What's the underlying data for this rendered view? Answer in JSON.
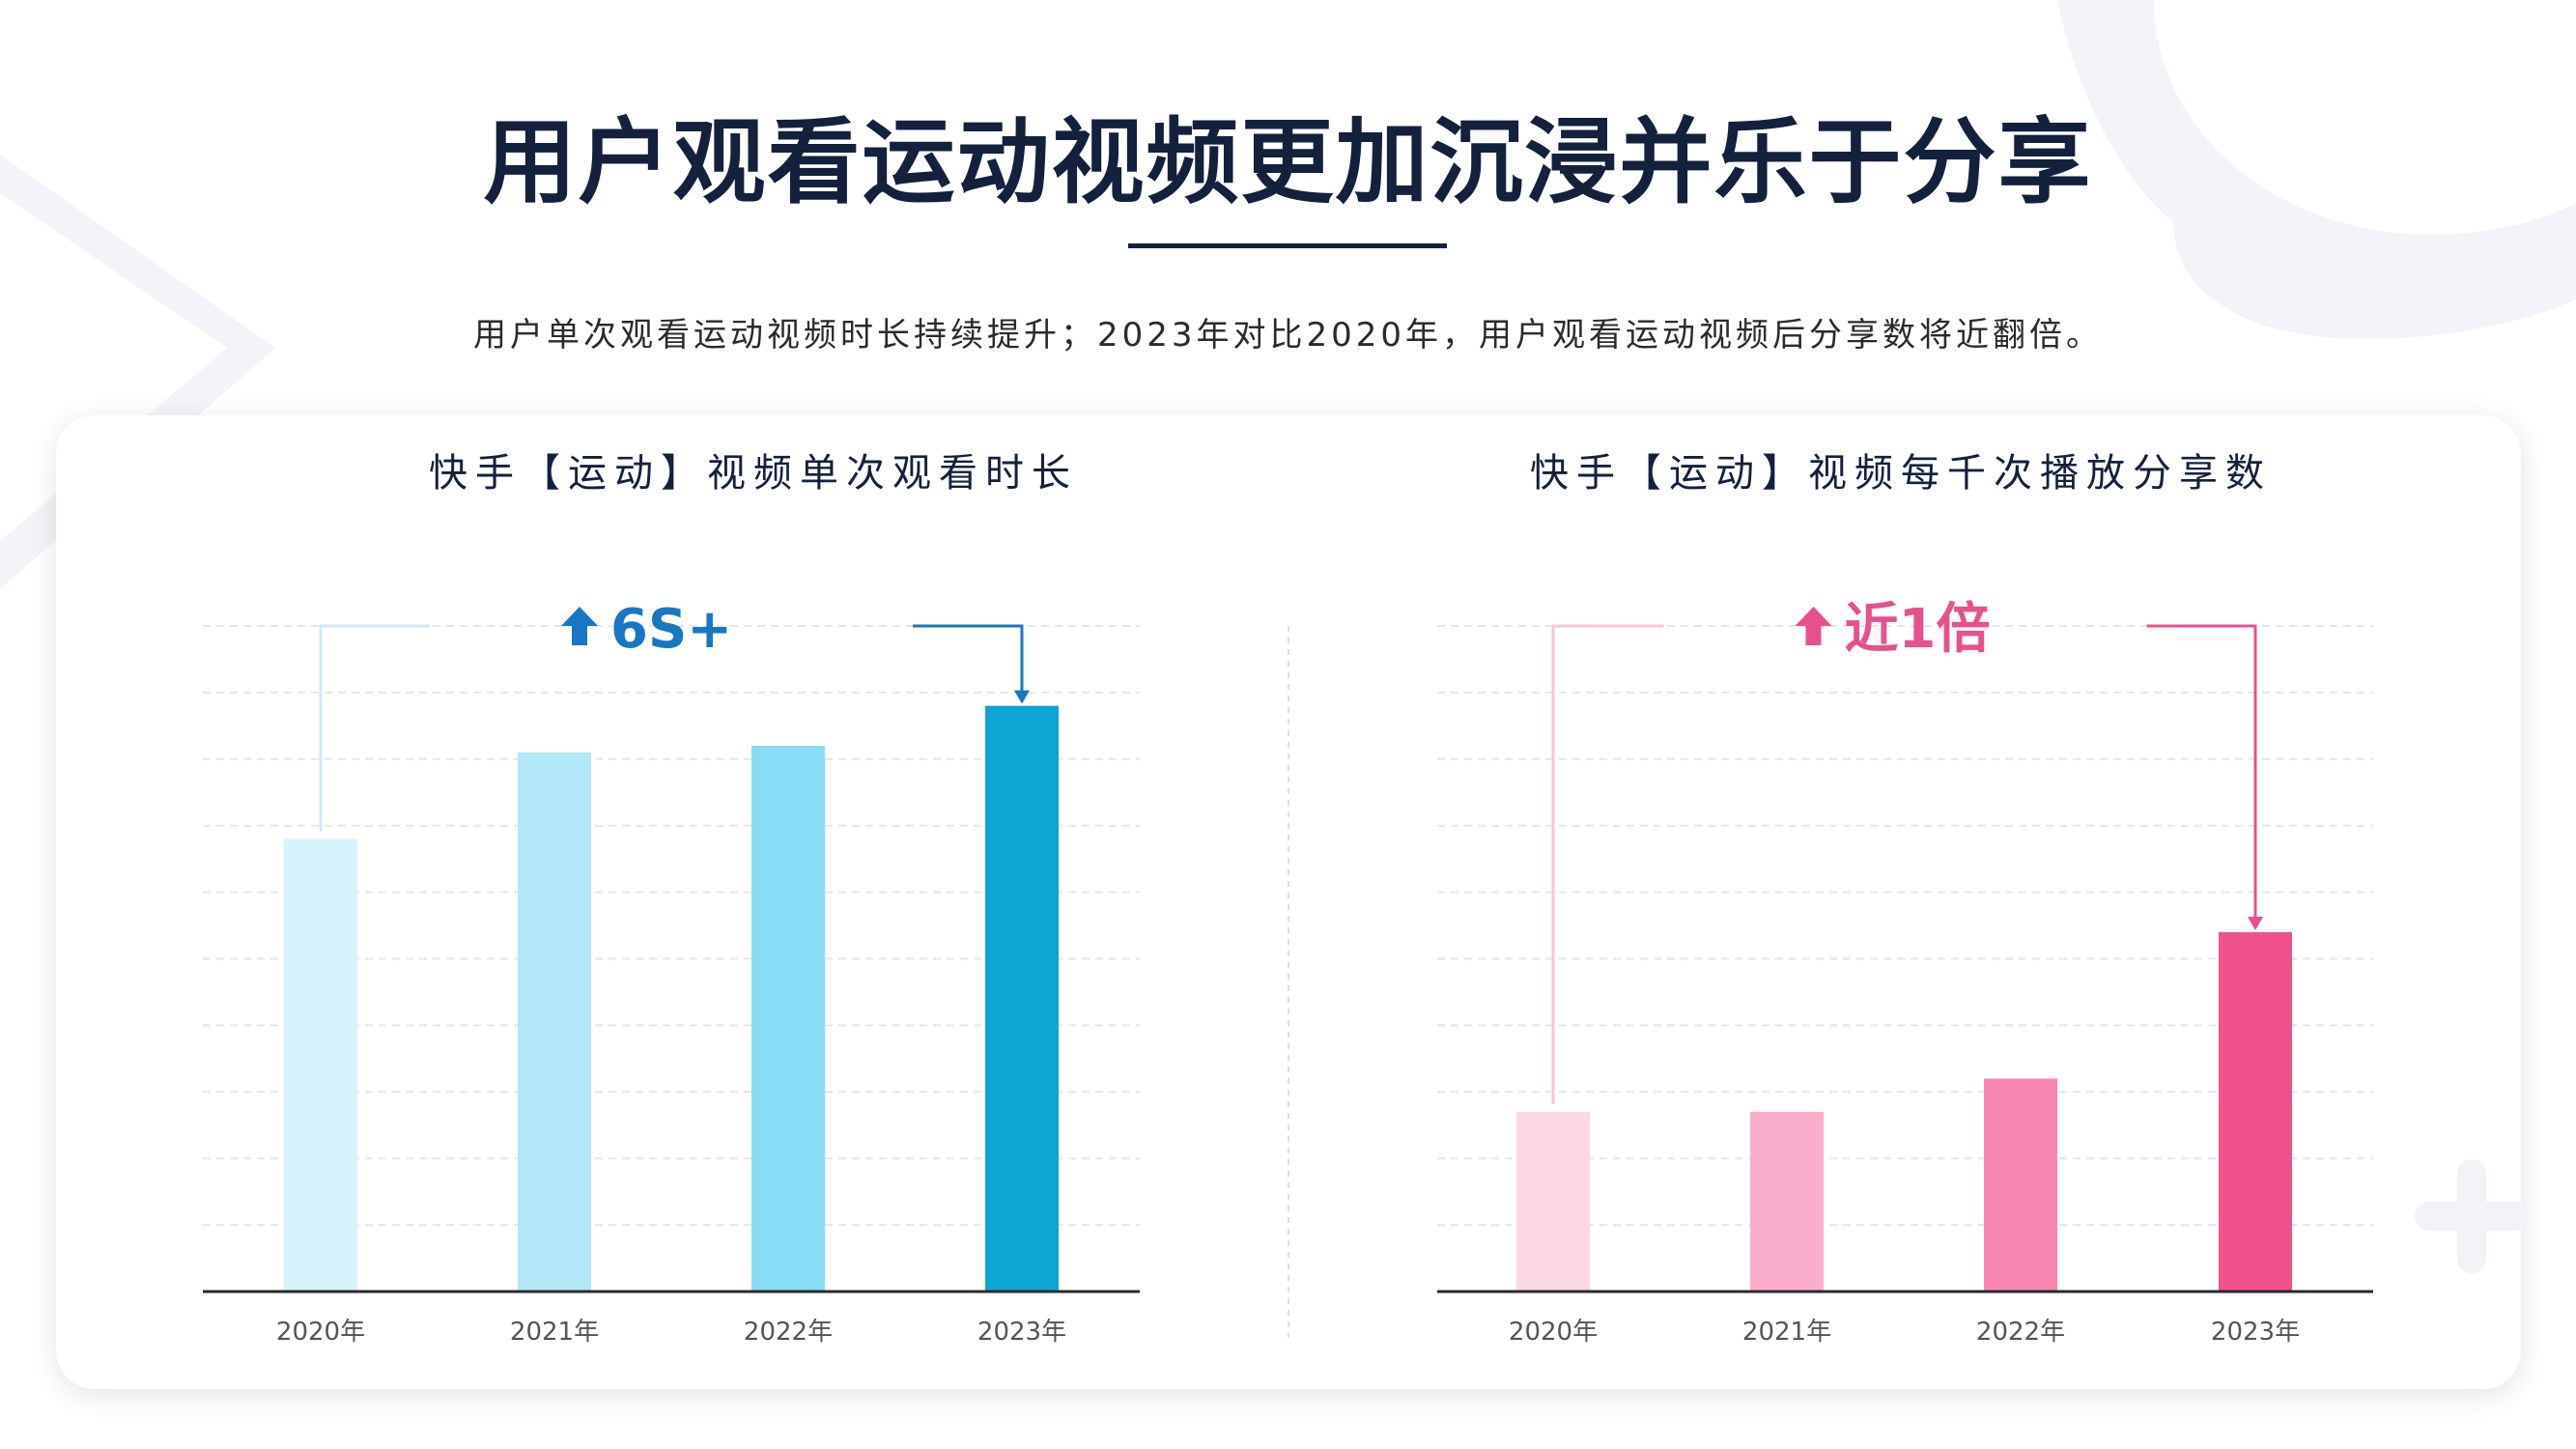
{
  "header": {
    "title": "用户观看运动视频更加沉浸并乐于分享",
    "subtitle": "用户单次观看运动视频时长持续提升；2023年对比2020年，用户观看运动视频后分享数将近翻倍。"
  },
  "colors": {
    "title": "#14213d",
    "left_series": [
      "#d6f3fb",
      "#b2e8f7",
      "#88dcf5",
      "#0fa5d2"
    ],
    "left_accent": "#1976c4",
    "right_series": [
      "#fcd7e4",
      "#fbaecb",
      "#f787b0",
      "#f0528e"
    ],
    "right_accent": "#e8508d"
  },
  "chart_data": [
    {
      "type": "bar",
      "title": "快手【运动】视频单次观看时长",
      "categories": [
        "2020年",
        "2021年",
        "2022年",
        "2023年"
      ],
      "values": [
        68,
        81,
        82,
        88
      ],
      "ylim": [
        0,
        100
      ],
      "xlabel": "",
      "ylabel": "",
      "grid": true,
      "annotation": {
        "text": "6S+",
        "arrow_icon": "up-arrow-icon",
        "from": "2020年",
        "to": "2023年"
      }
    },
    {
      "type": "bar",
      "title": "快手【运动】视频每千次播放分享数",
      "categories": [
        "2020年",
        "2021年",
        "2022年",
        "2023年"
      ],
      "values": [
        27,
        27,
        32,
        54
      ],
      "ylim": [
        0,
        100
      ],
      "xlabel": "",
      "ylabel": "",
      "grid": true,
      "annotation": {
        "text": "近1倍",
        "arrow_icon": "up-arrow-icon",
        "from": "2020年",
        "to": "2023年"
      }
    }
  ]
}
